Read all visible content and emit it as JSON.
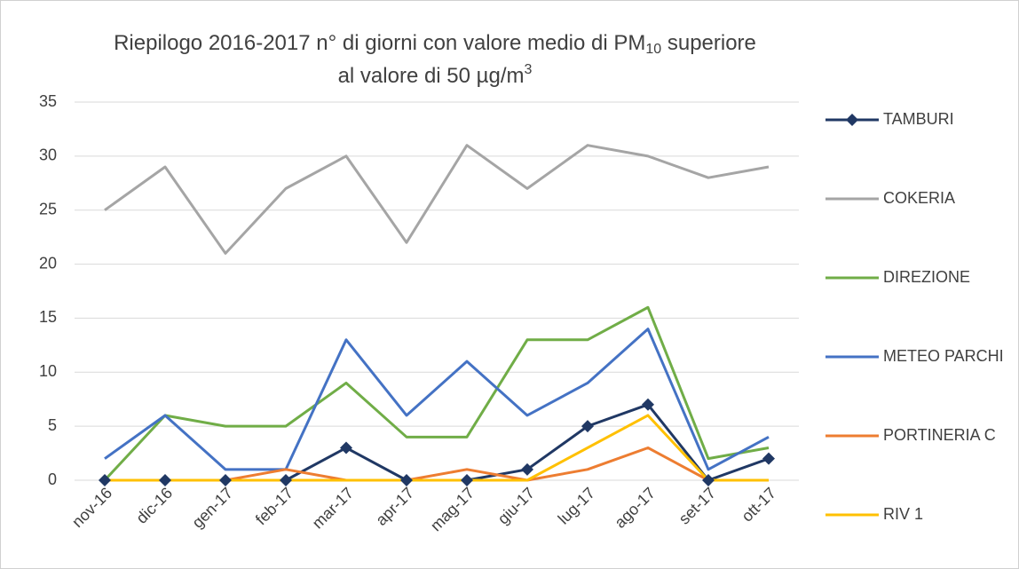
{
  "chart_data": {
    "type": "line",
    "title": [
      "Riepilogo 2016-2017  n° di giorni con valore medio di PM",
      "10",
      " superiore",
      "al valore di 50 µg/m",
      "3"
    ],
    "categories": [
      "nov-16",
      "dic-16",
      "gen-17",
      "feb-17",
      "mar-17",
      "apr-17",
      "mag-17",
      "giu-17",
      "lug-17",
      "ago-17",
      "set-17",
      "ott-17"
    ],
    "series": [
      {
        "name": "TAMBURI",
        "color": "#203864",
        "marker": "diamond",
        "values": [
          0,
          0,
          0,
          0,
          3,
          0,
          0,
          1,
          5,
          7,
          0,
          2
        ]
      },
      {
        "name": "COKERIA",
        "color": "#a5a5a5",
        "values": [
          25,
          29,
          21,
          27,
          30,
          22,
          31,
          27,
          31,
          30,
          28,
          29
        ]
      },
      {
        "name": "DIREZIONE",
        "color": "#70ad47",
        "values": [
          0,
          6,
          5,
          5,
          9,
          4,
          4,
          13,
          13,
          16,
          2,
          3
        ]
      },
      {
        "name": "METEO PARCHI",
        "color": "#4472c4",
        "values": [
          2,
          6,
          1,
          1,
          13,
          6,
          11,
          6,
          9,
          14,
          1,
          4
        ]
      },
      {
        "name": "PORTINERIA C",
        "color": "#ed7d31",
        "values": [
          0,
          0,
          0,
          1,
          0,
          0,
          1,
          0,
          1,
          3,
          0,
          0
        ]
      },
      {
        "name": "RIV 1",
        "color": "#ffc000",
        "values": [
          0,
          0,
          0,
          0,
          0,
          0,
          0,
          0,
          3,
          6,
          0,
          0
        ]
      }
    ],
    "ylim": [
      0,
      35
    ],
    "yticks": [
      0,
      5,
      10,
      15,
      20,
      25,
      30,
      35
    ],
    "grid": true,
    "legend": "right"
  }
}
